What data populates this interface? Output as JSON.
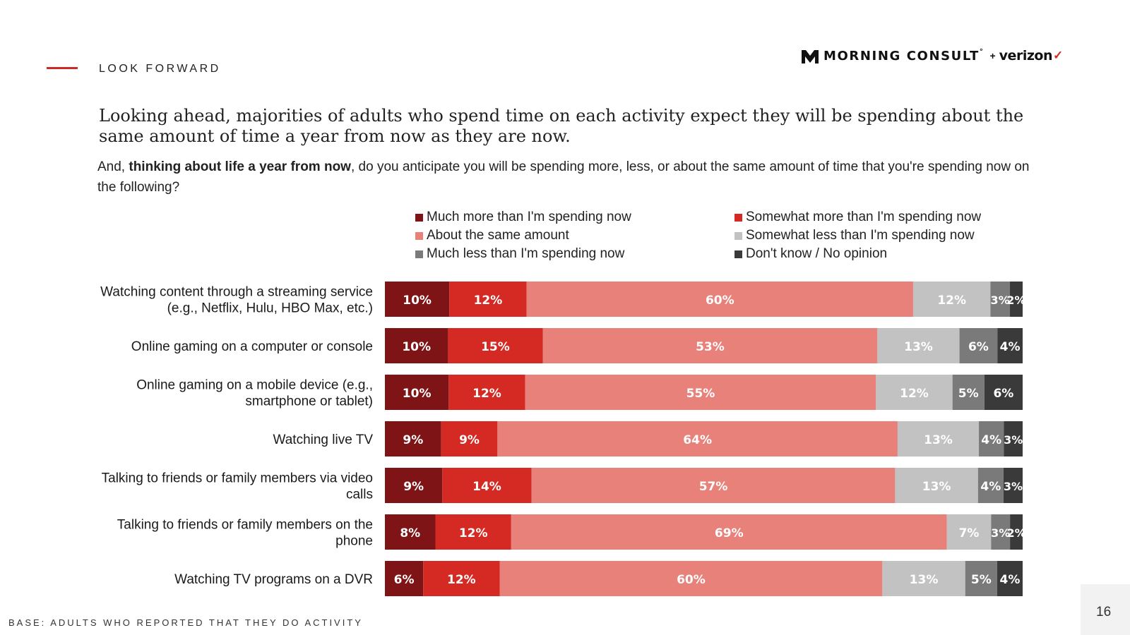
{
  "section_label": "LOOK FORWARD",
  "logo": {
    "brand": "MORNING CONSULT",
    "reg": "°",
    "plus": "+",
    "partner": "verizon",
    "partner_mark": "✓"
  },
  "headline": "Looking ahead, majorities of adults who spend time on each activity expect they will be spending about the same amount of time a year from now as they are now.",
  "question": {
    "prefix": "And, ",
    "bold": "thinking about life a year from now",
    "suffix": ", do you anticipate you will be spending more, less, or about the same amount of time that you're spending now on the following?"
  },
  "footer": "BASE: ADULTS WHO REPORTED THAT THEY DO ACTIVITY",
  "page_number": "16",
  "colors": {
    "accent": "#cd2a27",
    "much_more": "#7e1416",
    "somewhat_more": "#d42a23",
    "same": "#e7817a",
    "somewhat_less": "#c2c2c2",
    "much_less": "#7a7a7a",
    "dont_know": "#3a3a3a"
  },
  "chart_data": {
    "type": "bar",
    "orientation": "horizontal",
    "stacked": true,
    "legend_position": "top",
    "categories": [
      "Watching content through a streaming service (e.g., Netflix, Hulu, HBO Max, etc.)",
      "Online gaming on a computer or console",
      "Online gaming on a mobile device (e.g., smartphone or tablet)",
      "Watching live TV",
      "Talking to friends or family members via video calls",
      "Talking to friends or family members on the phone",
      "Watching TV programs on a DVR"
    ],
    "series": [
      {
        "name": "Much more than I'm spending now",
        "color": "#7e1416",
        "values": [
          10,
          10,
          10,
          9,
          9,
          8,
          6
        ]
      },
      {
        "name": "Somewhat more than I'm spending now",
        "color": "#d42a23",
        "values": [
          12,
          15,
          12,
          9,
          14,
          12,
          12
        ]
      },
      {
        "name": "About the same amount",
        "color": "#e7817a",
        "values": [
          60,
          53,
          55,
          64,
          57,
          69,
          60
        ]
      },
      {
        "name": "Somewhat less than I'm spending now",
        "color": "#c2c2c2",
        "values": [
          12,
          13,
          12,
          13,
          13,
          7,
          13
        ]
      },
      {
        "name": "Much less than I'm spending now",
        "color": "#7a7a7a",
        "values": [
          3,
          6,
          5,
          4,
          4,
          3,
          5
        ]
      },
      {
        "name": "Don't know / No opinion",
        "color": "#3a3a3a",
        "values": [
          2,
          4,
          6,
          3,
          3,
          2,
          4
        ]
      }
    ],
    "value_suffix": "%"
  }
}
